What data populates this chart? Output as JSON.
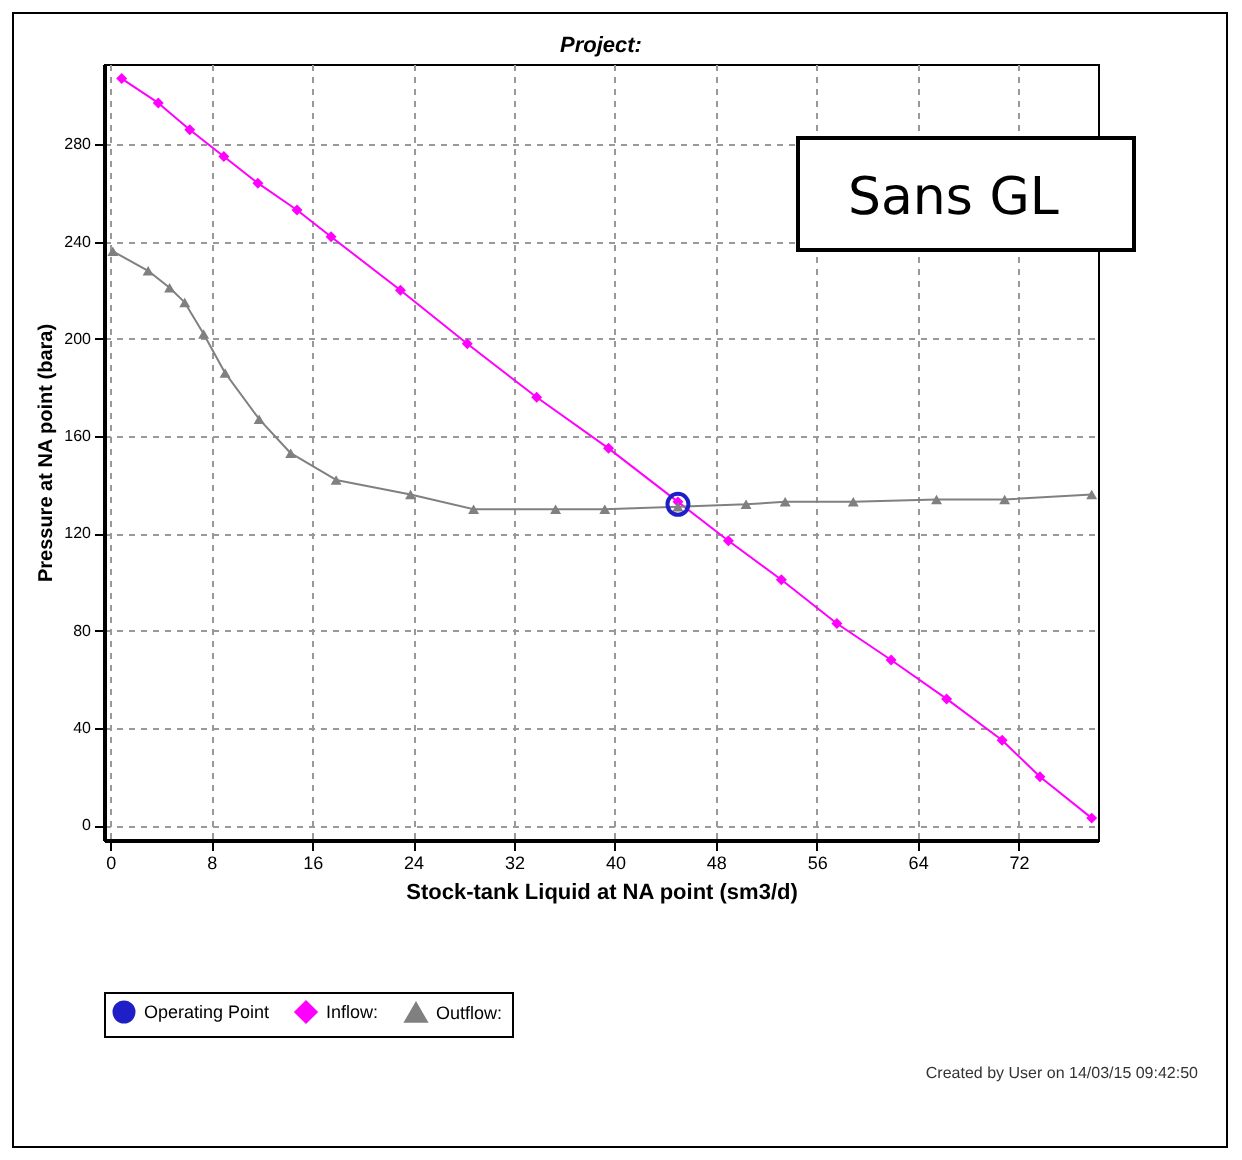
{
  "chart_data": {
    "type": "line",
    "title": "Project:",
    "xlabel": "Stock-tank Liquid at NA point (sm3/d)",
    "ylabel": "Pressure at NA point (bara)",
    "xlim": [
      -0.5,
      78.3
    ],
    "xticks": [
      0,
      8,
      16,
      24,
      32,
      40,
      48,
      56,
      64,
      72
    ],
    "ylim": [
      -6,
      313
    ],
    "yticks": [
      0,
      40,
      80,
      120,
      160,
      200,
      240,
      280
    ],
    "grid": true,
    "legend": "bottom",
    "annotations": [
      "Sans GL",
      "Created by User on 14/03/15 09:42:50"
    ],
    "series": [
      {
        "name": "Operating Point",
        "type": "scatter",
        "marker": "circle",
        "color": "#1f1fc8",
        "x": [
          45
        ],
        "values": [
          132
        ]
      },
      {
        "name": "Inflow:",
        "marker": "diamond",
        "color": "#ff00ff",
        "x": [
          0.9,
          3.8,
          6.3,
          9,
          11.7,
          14.8,
          17.5,
          23,
          28.3,
          33.8,
          39.5,
          45,
          49,
          53.2,
          57.6,
          61.9,
          66.3,
          70.7,
          73.7,
          77.8
        ],
        "values": [
          307,
          297,
          286,
          275,
          264,
          253,
          242,
          220,
          198,
          176,
          155,
          133,
          117,
          101,
          83,
          68,
          52,
          35,
          20,
          3
        ]
      },
      {
        "name": "Outflow:",
        "marker": "triangle",
        "color": "#808080",
        "x": [
          0.2,
          3,
          4.7,
          5.9,
          7.4,
          9.1,
          11.8,
          14.3,
          17.9,
          23.8,
          28.8,
          35.3,
          39.2,
          45,
          50.4,
          53.5,
          58.9,
          65.5,
          70.9,
          77.8
        ],
        "values": [
          236,
          228,
          221,
          215,
          202,
          186,
          167,
          153,
          142,
          136,
          130,
          130,
          130,
          131,
          132,
          133,
          133,
          134,
          134,
          136
        ]
      }
    ]
  }
}
